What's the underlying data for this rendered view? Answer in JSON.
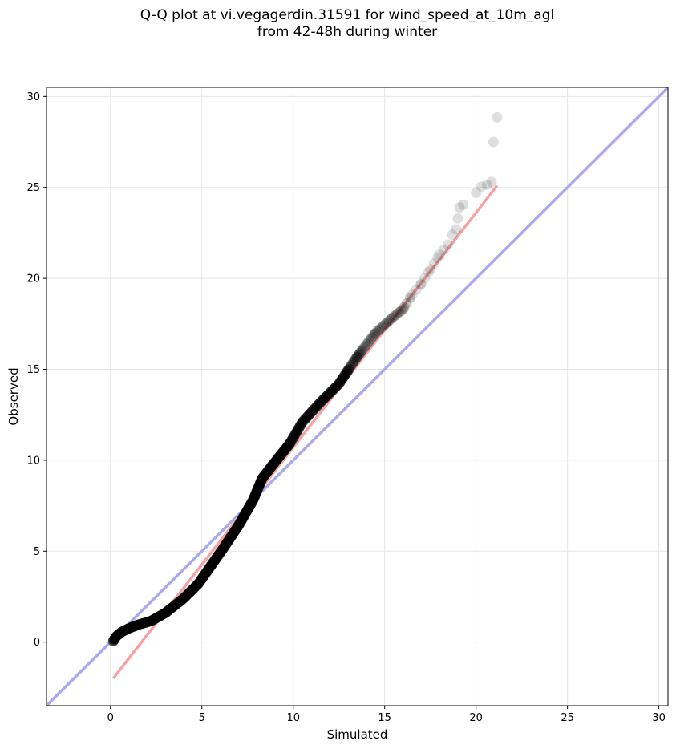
{
  "chart_data": {
    "type": "scatter",
    "title_lines": [
      "Q-Q plot at vi.vegagerdin.31591 for wind_speed_at_10m_agl",
      "from 42-48h during winter"
    ],
    "xlabel": "Simulated",
    "ylabel": "Observed",
    "xlim": [
      -3.5,
      30.5
    ],
    "ylim": [
      -3.5,
      30.5
    ],
    "xticks": [
      0,
      5,
      10,
      15,
      20,
      25,
      30
    ],
    "yticks": [
      0,
      5,
      10,
      15,
      20,
      25,
      30
    ],
    "grid": true,
    "identity_line": {
      "from": [
        -3.5,
        -3.5
      ],
      "to": [
        30.5,
        30.5
      ],
      "color": "#aaaaee"
    },
    "fit_line": {
      "from": [
        0.15,
        -2.0
      ],
      "to": [
        21.15,
        25.1
      ],
      "color": "#f4a3a3"
    },
    "point_color": "#000000",
    "dense_quantiles": [
      [
        0.15,
        0.05
      ],
      [
        0.3,
        0.3
      ],
      [
        0.6,
        0.55
      ],
      [
        1.0,
        0.75
      ],
      [
        1.5,
        0.95
      ],
      [
        2.2,
        1.15
      ],
      [
        3.0,
        1.6
      ],
      [
        4.0,
        2.4
      ],
      [
        4.8,
        3.2
      ],
      [
        5.5,
        4.2
      ],
      [
        6.2,
        5.2
      ],
      [
        7.0,
        6.4
      ],
      [
        7.8,
        7.8
      ],
      [
        8.3,
        9.0
      ],
      [
        9.0,
        9.9
      ],
      [
        9.8,
        10.9
      ],
      [
        10.5,
        12.1
      ],
      [
        11.5,
        13.2
      ],
      [
        12.5,
        14.2
      ],
      [
        13.5,
        15.7
      ],
      [
        14.5,
        17.0
      ],
      [
        15.5,
        17.9
      ],
      [
        16.0,
        18.3
      ],
      [
        16.5,
        19.1
      ],
      [
        17.0,
        19.7
      ],
      [
        17.5,
        20.5
      ],
      [
        18.0,
        21.3
      ],
      [
        18.5,
        21.9
      ]
    ],
    "tail_points": [
      [
        18.7,
        22.4
      ],
      [
        18.9,
        22.7
      ],
      [
        19.0,
        23.3
      ],
      [
        19.1,
        23.9
      ],
      [
        19.3,
        24.05
      ],
      [
        20.0,
        24.7
      ],
      [
        20.3,
        25.05
      ],
      [
        20.6,
        25.15
      ],
      [
        20.85,
        25.3
      ],
      [
        20.95,
        27.5
      ],
      [
        21.15,
        28.85
      ]
    ]
  }
}
